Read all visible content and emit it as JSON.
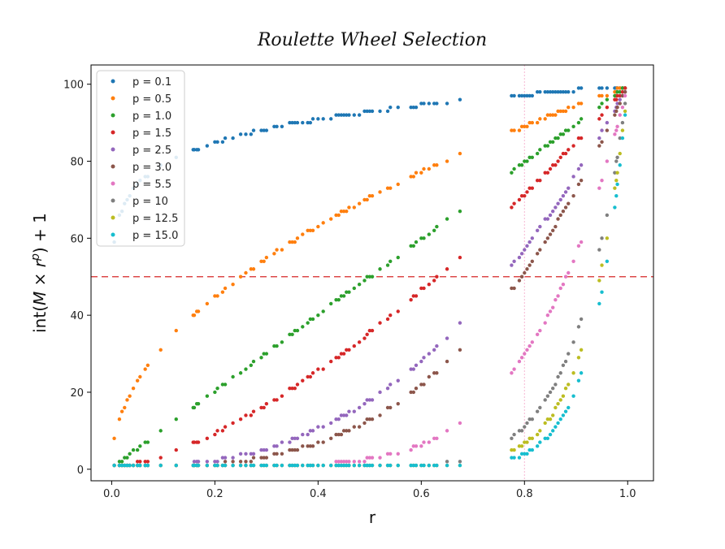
{
  "chart_data": {
    "type": "scatter",
    "title": "Roulette Wheel Selection",
    "xlabel": "r",
    "ylabel": "int(M × r^p) + 1",
    "ylabel_parts": {
      "prefix": "int(",
      "M": "M",
      "times": " × ",
      "r": "r",
      "p": "p",
      "suffix": ") + 1"
    },
    "xlim": [
      -0.04,
      1.05
    ],
    "ylim": [
      -3,
      105
    ],
    "x_ticks": [
      0.0,
      0.2,
      0.4,
      0.6,
      0.8,
      1.0
    ],
    "x_tick_labels": [
      "0.0",
      "0.2",
      "0.4",
      "0.6",
      "0.8",
      "1.0"
    ],
    "y_ticks": [
      0,
      20,
      40,
      60,
      80,
      100
    ],
    "y_tick_labels": [
      "0",
      "20",
      "40",
      "60",
      "80",
      "100"
    ],
    "M": 99,
    "hline": {
      "y": 50,
      "color": "#d62728",
      "style": "dashed"
    },
    "vline": {
      "x": 0.8,
      "color": "#f7b6d2",
      "style": "dotted"
    },
    "legend_position": "top-left",
    "r_samples": [
      0.005,
      0.015,
      0.02,
      0.025,
      0.03,
      0.035,
      0.042,
      0.05,
      0.055,
      0.065,
      0.07,
      0.095,
      0.125,
      0.158,
      0.16,
      0.165,
      0.168,
      0.185,
      0.2,
      0.205,
      0.215,
      0.22,
      0.235,
      0.25,
      0.26,
      0.27,
      0.275,
      0.29,
      0.295,
      0.3,
      0.315,
      0.32,
      0.33,
      0.345,
      0.35,
      0.355,
      0.36,
      0.37,
      0.38,
      0.385,
      0.39,
      0.4,
      0.41,
      0.425,
      0.435,
      0.44,
      0.445,
      0.45,
      0.455,
      0.46,
      0.47,
      0.48,
      0.49,
      0.495,
      0.5,
      0.505,
      0.52,
      0.535,
      0.54,
      0.555,
      0.58,
      0.585,
      0.59,
      0.6,
      0.605,
      0.615,
      0.625,
      0.63,
      0.65,
      0.675,
      0.775,
      0.78,
      0.79,
      0.795,
      0.8,
      0.805,
      0.81,
      0.815,
      0.825,
      0.83,
      0.84,
      0.845,
      0.85,
      0.855,
      0.86,
      0.865,
      0.87,
      0.875,
      0.88,
      0.885,
      0.895,
      0.905,
      0.91,
      0.945,
      0.95,
      0.96,
      0.975,
      0.978,
      0.98,
      0.985,
      0.99,
      0.995
    ],
    "series": [
      {
        "name": "p = 0.1",
        "p": 0.1,
        "color": "#1f77b4"
      },
      {
        "name": "p = 0.5",
        "p": 0.5,
        "color": "#ff7f0e"
      },
      {
        "name": "p = 1.0",
        "p": 1.0,
        "color": "#2ca02c"
      },
      {
        "name": "p = 1.5",
        "p": 1.5,
        "color": "#d62728"
      },
      {
        "name": "p = 2.5",
        "p": 2.5,
        "color": "#9467bd"
      },
      {
        "name": "p = 3.0",
        "p": 3.0,
        "color": "#8c564b"
      },
      {
        "name": "p = 5.5",
        "p": 5.5,
        "color": "#e377c2"
      },
      {
        "name": "p = 10",
        "p": 10,
        "color": "#7f7f7f"
      },
      {
        "name": "p = 12.5",
        "p": 12.5,
        "color": "#bcbd22"
      },
      {
        "name": "p = 15.0",
        "p": 15.0,
        "color": "#17becf"
      }
    ]
  }
}
